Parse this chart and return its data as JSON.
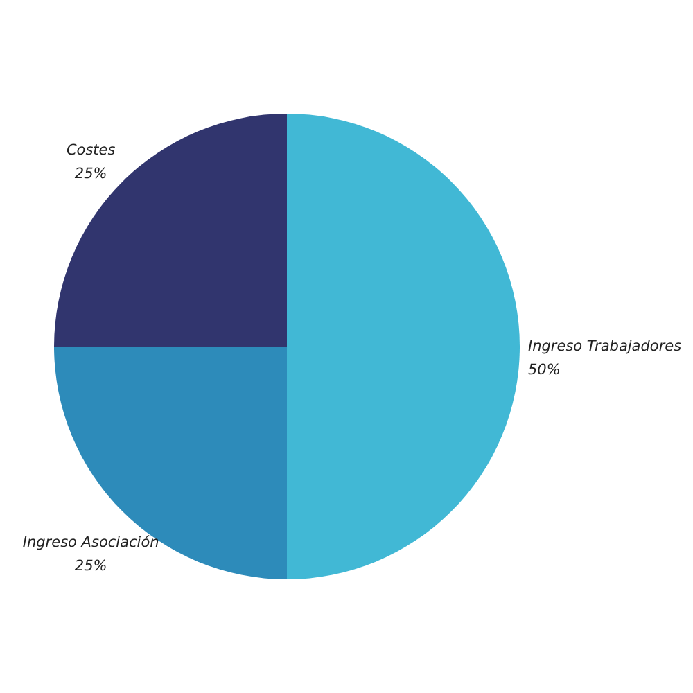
{
  "chart_data": {
    "type": "pie",
    "categories": [
      "Ingreso Trabajadores",
      "Ingreso Asociación",
      "Costes"
    ],
    "values": [
      50,
      25,
      25
    ],
    "colors": [
      "#41b8d5",
      "#2d8bba",
      "#31356e"
    ],
    "value_labels": [
      "50%",
      "25%",
      "25%"
    ]
  }
}
